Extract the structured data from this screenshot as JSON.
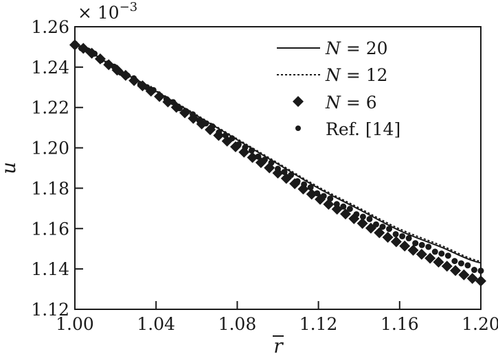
{
  "chart_data": {
    "type": "line",
    "title": "",
    "xlabel": "r̄",
    "ylabel": "ū",
    "y_multiplier": "× 10⁻³",
    "xlim": [
      1.0,
      1.2
    ],
    "ylim": [
      1.12,
      1.26
    ],
    "grid": false,
    "legend_position": "upper right",
    "x_ticks": [
      "1.00",
      "1.04",
      "1.08",
      "1.12",
      "1.16",
      "1.20"
    ],
    "y_ticks": [
      "1.12",
      "1.14",
      "1.16",
      "1.18",
      "1.20",
      "1.22",
      "1.24",
      "1.26"
    ],
    "x": [
      1.0,
      1.02,
      1.04,
      1.06,
      1.08,
      1.1,
      1.12,
      1.14,
      1.16,
      1.18,
      1.2
    ],
    "series": [
      {
        "name": "N = 20",
        "style": "solid line",
        "values": [
          1.251,
          1.2395,
          1.228,
          1.216,
          1.204,
          1.192,
          1.18,
          1.1695,
          1.159,
          1.151,
          1.143
        ]
      },
      {
        "name": "N = 12",
        "style": "dashed line",
        "values": [
          1.251,
          1.2397,
          1.2283,
          1.2163,
          1.2044,
          1.1925,
          1.1806,
          1.1702,
          1.1598,
          1.1518,
          1.1437
        ]
      },
      {
        "name": "N = 6",
        "style": "diamond markers",
        "values": [
          1.251,
          1.239,
          1.2265,
          1.2135,
          1.2,
          1.1875,
          1.175,
          1.1635,
          1.1526,
          1.143,
          1.134
        ]
      },
      {
        "name": "Ref. [14]",
        "style": "dot markers",
        "values": [
          1.251,
          1.2392,
          1.2272,
          1.2148,
          1.2025,
          1.19,
          1.1775,
          1.1668,
          1.1567,
          1.1478,
          1.139
        ]
      }
    ]
  },
  "legend": [
    {
      "label_var": "N",
      "label_rest": " = 20",
      "marker": "solid"
    },
    {
      "label_var": "N",
      "label_rest": " = 12",
      "marker": "dashed"
    },
    {
      "label_var": "N",
      "label_rest": " = 6",
      "marker": "diamond"
    },
    {
      "label_var": "",
      "label_rest": "Ref. [14]",
      "marker": "dot"
    }
  ],
  "axes": {
    "multiplier_base": "× 10",
    "multiplier_exp": "−3",
    "xlabel": "r",
    "ylabel": "u"
  },
  "colors": {
    "ink": "#1a1a1a",
    "background": "#ffffff"
  }
}
